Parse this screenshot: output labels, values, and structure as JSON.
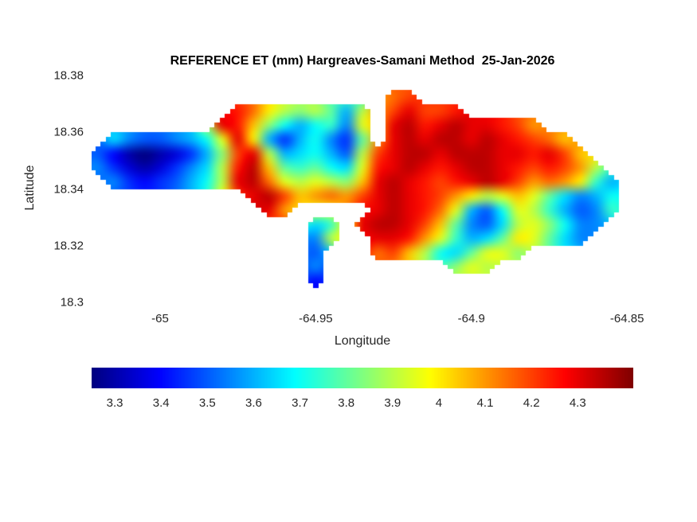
{
  "figure": {
    "background": "#ffffff"
  },
  "chart_data": {
    "type": "heatmap",
    "title": "REFERENCE ET (mm) Hargreaves-Samani Method  25-Jan-2026",
    "xlabel": "Longitude",
    "ylabel": "Latitude",
    "units": "mm",
    "colormap": "jet",
    "clim": [
      3.25,
      4.42
    ],
    "xlim": [
      -65.022,
      -64.848
    ],
    "ylim": [
      18.3,
      18.38
    ],
    "x_ticks": [
      -65,
      -64.95,
      -64.9,
      -64.85
    ],
    "x_tick_labels": [
      "-65",
      "-64.95",
      "-64.9",
      "-64.85"
    ],
    "y_ticks": [
      18.3,
      18.32,
      18.34,
      18.36,
      18.38
    ],
    "y_tick_labels": [
      "18.3",
      "18.32",
      "18.34",
      "18.36",
      "18.38"
    ],
    "colorbar": {
      "orientation": "horizontal",
      "ticks": [
        3.3,
        3.4,
        3.5,
        3.6,
        3.7,
        3.8,
        3.9,
        4,
        4.1,
        4.2,
        4.3
      ],
      "tick_labels": [
        "3.3",
        "3.4",
        "3.5",
        "3.6",
        "3.7",
        "3.8",
        "3.9",
        "4",
        "4.1",
        "4.2",
        "4.3"
      ]
    },
    "grid": {
      "lon_start": -65.02,
      "lon_step": 0.005,
      "lat_start": 18.3775,
      "lat_step": -0.005,
      "values": [
        [
          null,
          null,
          null,
          null,
          null,
          null,
          null,
          null,
          null,
          null,
          null,
          null,
          null,
          null,
          null,
          null,
          null,
          null,
          null,
          null,
          null,
          null,
          null,
          null,
          null,
          null,
          null,
          null,
          null,
          null,
          null,
          null,
          null,
          null,
          null
        ],
        [
          null,
          null,
          null,
          null,
          null,
          null,
          null,
          null,
          null,
          null,
          null,
          null,
          null,
          null,
          null,
          null,
          null,
          null,
          null,
          4.15,
          4.2,
          null,
          null,
          null,
          null,
          null,
          null,
          null,
          null,
          null,
          null,
          null,
          null,
          null,
          null
        ],
        [
          null,
          null,
          null,
          null,
          null,
          null,
          null,
          null,
          null,
          4.25,
          4.15,
          4.0,
          3.9,
          3.85,
          3.9,
          3.8,
          3.6,
          3.9,
          null,
          4.2,
          4.3,
          4.2,
          4.2,
          4.25,
          null,
          null,
          null,
          null,
          null,
          null,
          null,
          null,
          null,
          null,
          null
        ],
        [
          null,
          null,
          null,
          null,
          null,
          null,
          null,
          null,
          4.3,
          4.25,
          4.05,
          3.85,
          3.7,
          3.6,
          3.7,
          3.75,
          3.55,
          3.95,
          null,
          4.3,
          4.35,
          4.25,
          4.3,
          4.35,
          4.3,
          4.3,
          4.25,
          4.2,
          4.1,
          null,
          null,
          null,
          null,
          null,
          null
        ],
        [
          null,
          3.65,
          3.55,
          3.5,
          3.5,
          3.55,
          3.6,
          3.7,
          3.95,
          4.3,
          4.0,
          3.6,
          3.45,
          3.6,
          3.7,
          3.55,
          3.45,
          3.8,
          null,
          4.3,
          4.35,
          4.3,
          4.35,
          4.35,
          4.3,
          4.35,
          4.3,
          4.25,
          4.2,
          4.15,
          4.05,
          null,
          null,
          null,
          null
        ],
        [
          3.5,
          3.4,
          3.3,
          3.25,
          3.3,
          3.35,
          3.45,
          3.6,
          3.85,
          4.2,
          4.3,
          3.9,
          3.6,
          3.65,
          3.7,
          3.6,
          3.5,
          3.9,
          4.2,
          4.3,
          4.35,
          4.35,
          4.3,
          4.35,
          4.35,
          4.35,
          4.3,
          4.3,
          4.25,
          4.3,
          4.2,
          4.05,
          null,
          null,
          null
        ],
        [
          3.55,
          3.45,
          3.35,
          3.3,
          3.35,
          3.45,
          3.55,
          3.65,
          3.9,
          4.25,
          4.35,
          4.05,
          3.8,
          3.75,
          3.8,
          3.7,
          3.65,
          3.95,
          4.25,
          4.3,
          4.35,
          4.3,
          4.25,
          4.3,
          4.35,
          4.35,
          4.3,
          4.25,
          4.2,
          4.25,
          4.2,
          4.1,
          3.9,
          null,
          null
        ],
        [
          null,
          3.55,
          3.45,
          3.4,
          3.45,
          3.5,
          3.6,
          3.7,
          3.9,
          4.3,
          4.35,
          4.15,
          3.95,
          3.9,
          3.95,
          3.9,
          3.85,
          4.05,
          4.3,
          4.35,
          4.3,
          4.25,
          4.2,
          4.25,
          4.3,
          4.35,
          4.3,
          4.2,
          4.1,
          4.15,
          4.1,
          4.0,
          3.75,
          3.6,
          null
        ],
        [
          null,
          null,
          null,
          null,
          null,
          null,
          null,
          null,
          null,
          null,
          4.3,
          4.35,
          4.2,
          4.05,
          4.1,
          4.15,
          4.1,
          4.2,
          4.3,
          4.35,
          4.3,
          4.25,
          4.2,
          4.1,
          4.0,
          3.9,
          3.95,
          4.05,
          3.95,
          3.8,
          3.65,
          3.55,
          3.6,
          3.7,
          null
        ],
        [
          null,
          null,
          null,
          null,
          null,
          null,
          null,
          null,
          null,
          null,
          null,
          4.3,
          4.1,
          null,
          null,
          null,
          null,
          null,
          4.3,
          4.35,
          4.3,
          4.25,
          4.15,
          3.95,
          3.6,
          3.5,
          3.7,
          3.95,
          3.9,
          3.75,
          3.6,
          3.5,
          3.55,
          3.75,
          null
        ],
        [
          null,
          null,
          null,
          null,
          null,
          null,
          null,
          null,
          null,
          null,
          null,
          null,
          null,
          null,
          3.65,
          3.75,
          null,
          4.3,
          4.35,
          4.35,
          4.3,
          4.2,
          4.05,
          3.8,
          3.55,
          3.5,
          3.65,
          3.9,
          3.95,
          3.85,
          3.7,
          3.55,
          3.55,
          null,
          null
        ],
        [
          null,
          null,
          null,
          null,
          null,
          null,
          null,
          null,
          null,
          null,
          null,
          null,
          null,
          null,
          3.55,
          3.9,
          null,
          null,
          4.3,
          4.3,
          4.25,
          4.1,
          3.95,
          3.75,
          3.6,
          3.65,
          3.8,
          4.0,
          3.95,
          3.8,
          3.65,
          3.55,
          null,
          null,
          null
        ],
        [
          null,
          null,
          null,
          null,
          null,
          null,
          null,
          null,
          null,
          null,
          null,
          null,
          null,
          null,
          3.5,
          null,
          null,
          null,
          4.15,
          4.2,
          4.05,
          3.9,
          3.7,
          3.65,
          3.8,
          3.95,
          3.95,
          3.85,
          null,
          null,
          null,
          null,
          null,
          null,
          null
        ],
        [
          null,
          null,
          null,
          null,
          null,
          null,
          null,
          null,
          null,
          null,
          null,
          null,
          null,
          null,
          3.55,
          null,
          null,
          null,
          null,
          null,
          null,
          null,
          null,
          3.85,
          3.95,
          3.9,
          null,
          null,
          null,
          null,
          null,
          null,
          null,
          null,
          null
        ],
        [
          null,
          null,
          null,
          null,
          null,
          null,
          null,
          null,
          null,
          null,
          null,
          null,
          null,
          null,
          3.4,
          null,
          null,
          null,
          null,
          null,
          null,
          null,
          null,
          null,
          null,
          null,
          null,
          null,
          null,
          null,
          null,
          null,
          null,
          null,
          null
        ],
        [
          null,
          null,
          null,
          null,
          null,
          null,
          null,
          null,
          null,
          null,
          null,
          null,
          null,
          null,
          null,
          null,
          null,
          null,
          null,
          null,
          null,
          null,
          null,
          null,
          null,
          null,
          null,
          null,
          null,
          null,
          null,
          null,
          null,
          null,
          null
        ]
      ]
    }
  }
}
